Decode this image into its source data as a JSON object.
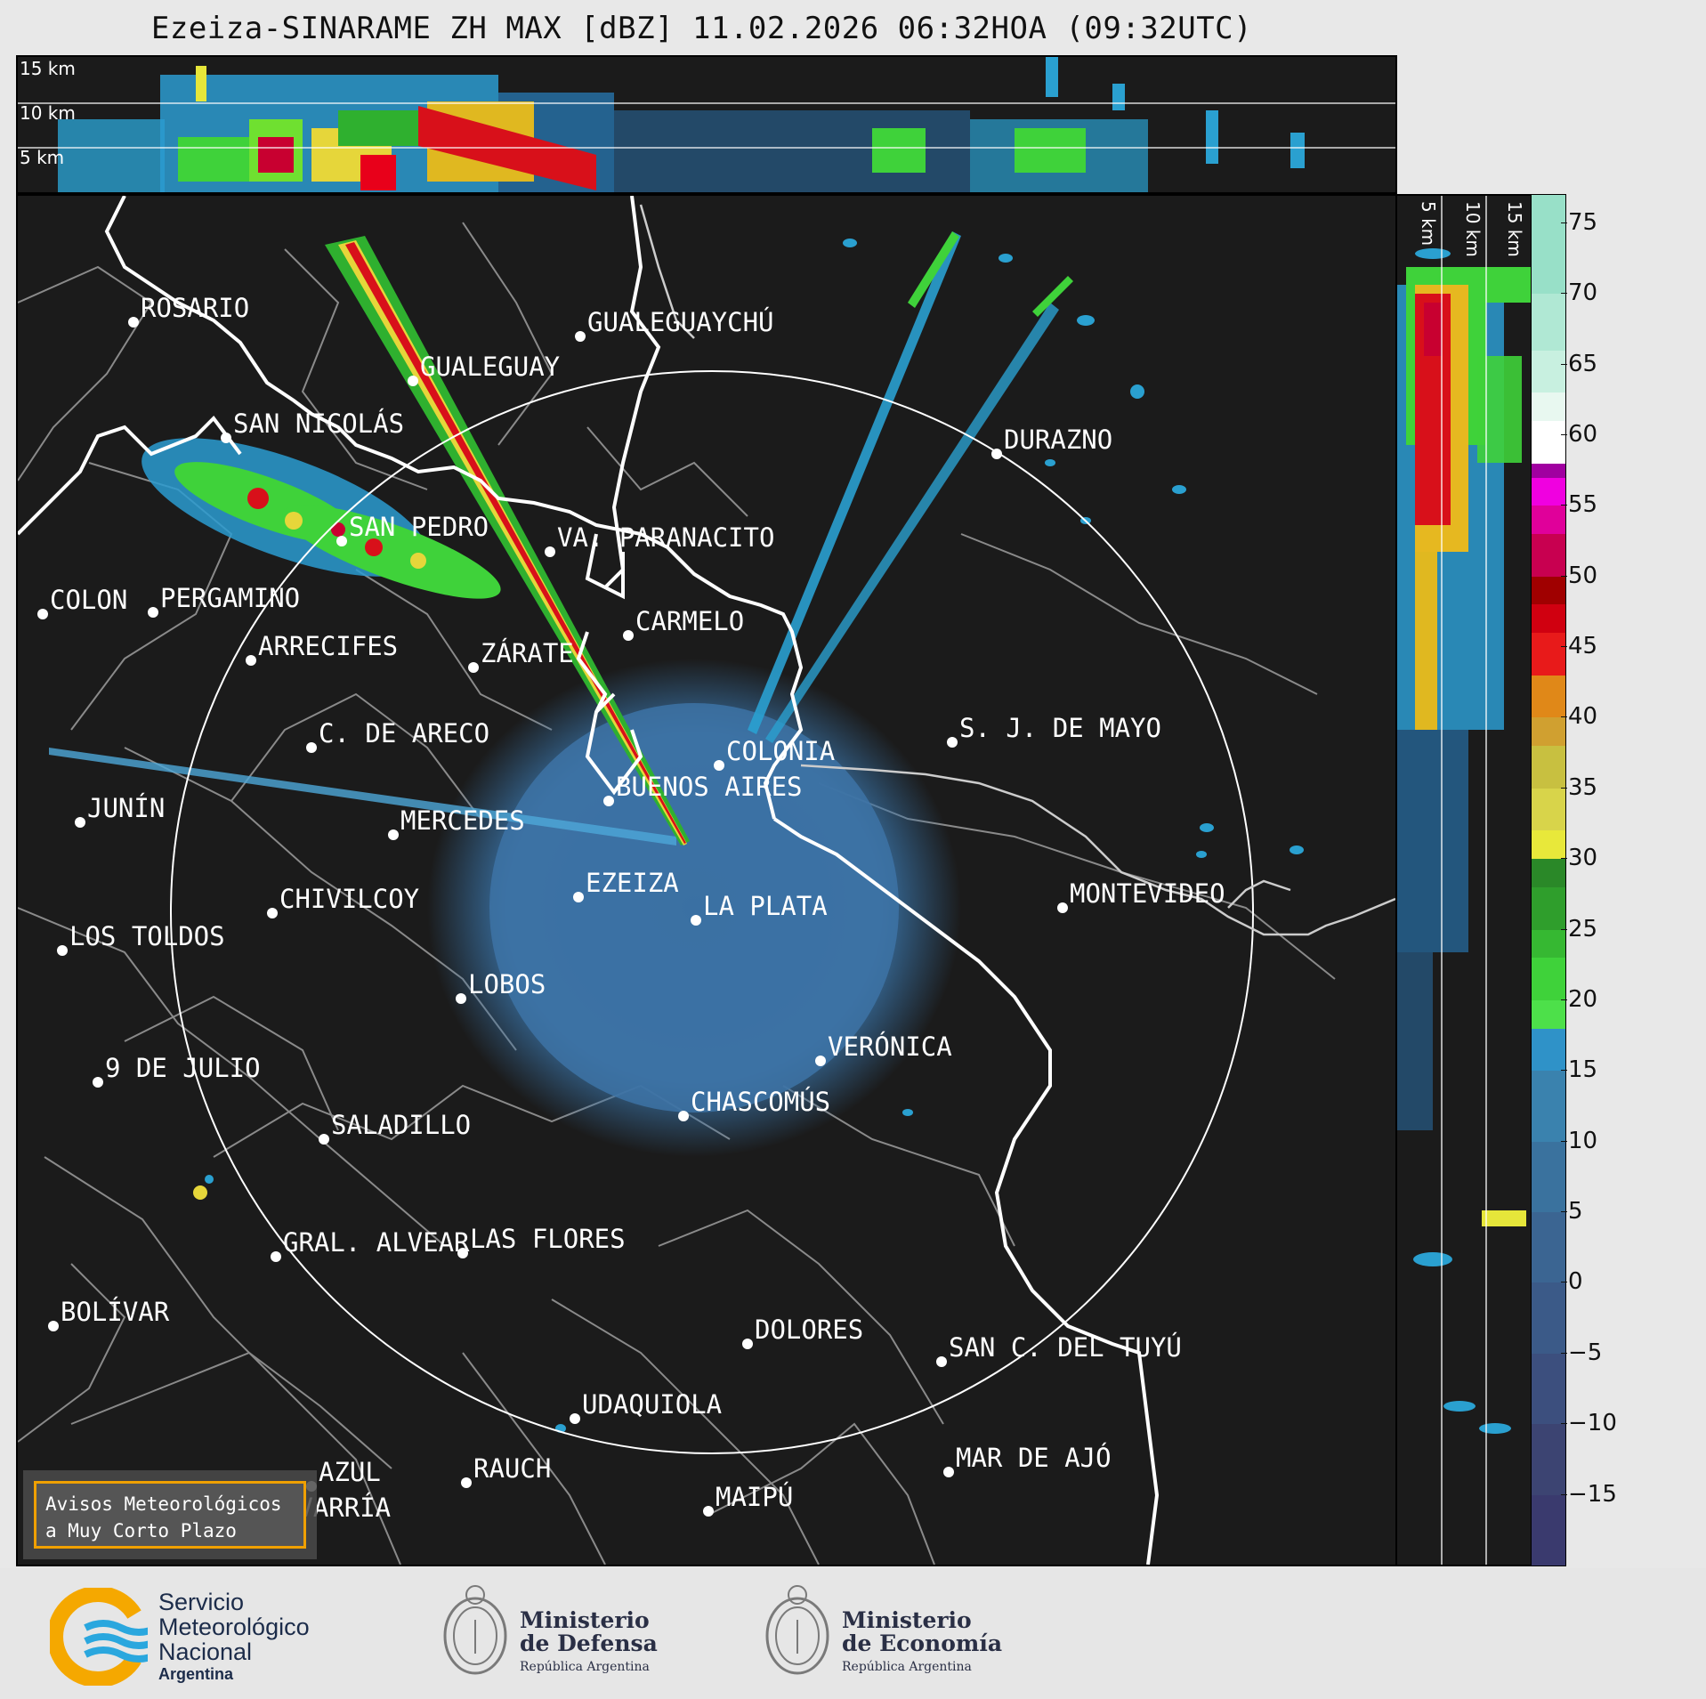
{
  "title": "Ezeiza-SINARAME ZH MAX [dBZ] 11.02.2026 06:32HOA (09:32UTC)",
  "top_panel": {
    "height_labels": [
      "15 km",
      "10 km",
      "5 km"
    ]
  },
  "side_panel": {
    "height_labels": [
      "5 km",
      "10 km",
      "15 km"
    ]
  },
  "colorbar": {
    "unit": "dBZ",
    "ticks": [
      "75",
      "70",
      "65",
      "60",
      "55",
      "50",
      "45",
      "40",
      "35",
      "30",
      "25",
      "20",
      "15",
      "10",
      "5",
      "0",
      "−5",
      "−10",
      "−15"
    ],
    "range": [
      -20,
      77
    ]
  },
  "cities": [
    {
      "name": "ROSARIO"
    },
    {
      "name": "GUALEGUAYCHÚ"
    },
    {
      "name": "GUALEGUAY"
    },
    {
      "name": "SAN NICOLÁS"
    },
    {
      "name": "DURAZNO"
    },
    {
      "name": "SAN PEDRO"
    },
    {
      "name": "VA. PARANACITO"
    },
    {
      "name": "COLON"
    },
    {
      "name": "PERGAMINO"
    },
    {
      "name": "CARMELO"
    },
    {
      "name": "ARRECIFES"
    },
    {
      "name": "ZÁRATE"
    },
    {
      "name": "S. J. DE MAYO"
    },
    {
      "name": "C. DE ARECO"
    },
    {
      "name": "COLONIA"
    },
    {
      "name": "JUNÍN"
    },
    {
      "name": "BUENOS AIRES"
    },
    {
      "name": "MERCEDES"
    },
    {
      "name": "EZEIZA"
    },
    {
      "name": "MONTEVIDEO"
    },
    {
      "name": "CHIVILCOY"
    },
    {
      "name": "LA PLATA"
    },
    {
      "name": "LOS TOLDOS"
    },
    {
      "name": "LOBOS"
    },
    {
      "name": "VERÓNICA"
    },
    {
      "name": "9 DE JULIO"
    },
    {
      "name": "CHASCOMÚS"
    },
    {
      "name": "SALADILLO"
    },
    {
      "name": "GRAL. ALVEAR"
    },
    {
      "name": "LAS FLORES"
    },
    {
      "name": "BOLÍVAR"
    },
    {
      "name": "DOLORES"
    },
    {
      "name": "SAN C. DEL TUYÚ"
    },
    {
      "name": "UDAQUIOLA"
    },
    {
      "name": "MAR DE AJÓ"
    },
    {
      "name": "AZUL"
    },
    {
      "name": "RAUCH"
    },
    {
      "name": "MAIPÚ"
    },
    {
      "name": "OLAVARRÍA"
    }
  ],
  "notice": {
    "line1": "Avisos Meteorológicos",
    "line2": "a Muy Corto Plazo"
  },
  "footer": {
    "smn": {
      "line1": "Servicio",
      "line2": "Meteorológico",
      "line3": "Nacional",
      "line4": "Argentina"
    },
    "defensa": {
      "line1": "Ministerio",
      "line2": "de Defensa",
      "line3": "República Argentina"
    },
    "economia": {
      "line1": "Ministerio",
      "line2": "de Economía",
      "line3": "República Argentina"
    }
  },
  "colors": {
    "background": "#1b1b1b",
    "coast": "#ffffff",
    "borders": "#8a8a8a",
    "notice_border": "#f0a000"
  }
}
